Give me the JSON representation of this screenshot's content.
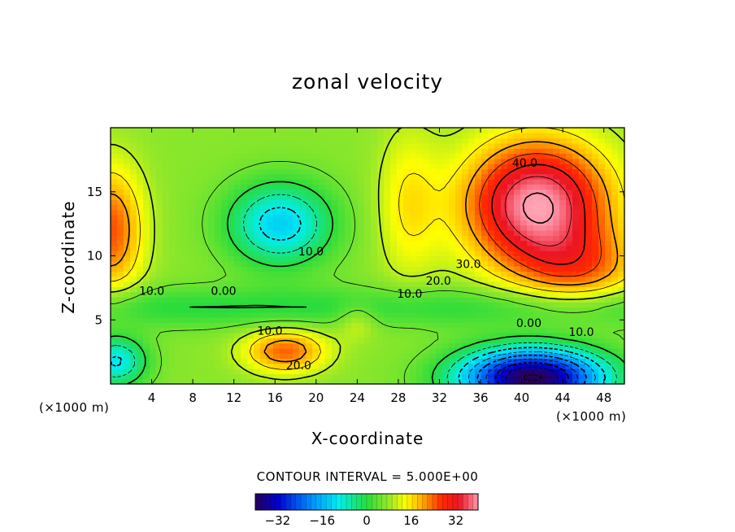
{
  "chart_data": {
    "type": "heatmap",
    "title": "zonal velocity",
    "xlabel": "X-coordinate",
    "ylabel": "Z-coordinate",
    "x_unit": "(×1000 m)",
    "x_unit_right": "(×1000 m)",
    "xlim": [
      0,
      50
    ],
    "ylim": [
      0,
      20
    ],
    "x_ticks": [
      "4",
      "8",
      "12",
      "16",
      "20",
      "24",
      "28",
      "32",
      "36",
      "40",
      "44",
      "48"
    ],
    "x_tick_values": [
      4,
      8,
      12,
      16,
      20,
      24,
      28,
      32,
      36,
      40,
      44,
      48
    ],
    "y_ticks": [
      "5",
      "10",
      "15"
    ],
    "y_tick_values": [
      5,
      10,
      15
    ],
    "contour_interval_text": "CONTOUR INTERVAL = 5.000E+00",
    "contour_interval": 5,
    "colorbar": {
      "range": [
        -40,
        40
      ],
      "ticks": [
        "−32",
        "−16",
        "0",
        "16",
        "32"
      ],
      "tick_values": [
        -32,
        -16,
        0,
        16,
        32
      ]
    },
    "contour_labels": [
      {
        "text": "40.0",
        "x": 40.3,
        "z": 17.2
      },
      {
        "text": "30.0",
        "x": 34.8,
        "z": 9.3
      },
      {
        "text": "20.0",
        "x": 31.9,
        "z": 8.0
      },
      {
        "text": "10.0",
        "x": 29.1,
        "z": 7.0
      },
      {
        "text": "10.0",
        "x": 19.5,
        "z": 10.3
      },
      {
        "text": "0.00",
        "x": 11.0,
        "z": 7.2
      },
      {
        "text": "10.0",
        "x": 4.0,
        "z": 7.2
      },
      {
        "text": "0.00",
        "x": 40.7,
        "z": 4.7
      },
      {
        "text": "10.0",
        "x": 45.8,
        "z": 4.0
      },
      {
        "text": "10.0",
        "x": 15.5,
        "z": 4.1
      },
      {
        "text": "20.0",
        "x": 18.3,
        "z": 1.4
      }
    ],
    "features": [
      {
        "kind": "max",
        "x": 42,
        "z": 13,
        "value": 48
      },
      {
        "kind": "max",
        "x": 0.5,
        "z": 12,
        "value": 28
      },
      {
        "kind": "max",
        "x": 17,
        "z": 2.5,
        "value": 24
      },
      {
        "kind": "min",
        "x": 16.5,
        "z": 12.2,
        "value": -14
      },
      {
        "kind": "min",
        "x": 41,
        "z": 0.7,
        "value": -40
      },
      {
        "kind": "min",
        "x": 0.5,
        "z": 2,
        "value": -12
      }
    ]
  }
}
